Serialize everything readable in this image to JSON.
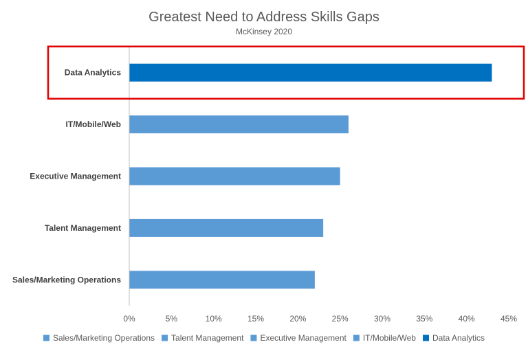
{
  "chart_data": {
    "type": "bar",
    "orientation": "horizontal",
    "title": "Greatest Need to Address Skills Gaps",
    "subtitle": "McKinsey 2020",
    "categories": [
      "Sales/Marketing Operations",
      "Talent Management",
      "Executive Management",
      "IT/Mobile/Web",
      "Data Analytics"
    ],
    "values": [
      22,
      23,
      25,
      26,
      43
    ],
    "value_unit": "%",
    "xlim": [
      0,
      45
    ],
    "x_ticks": [
      0,
      5,
      10,
      15,
      20,
      25,
      30,
      35,
      40,
      45
    ],
    "x_tick_labels": [
      "0%",
      "5%",
      "10%",
      "15%",
      "20%",
      "25%",
      "30%",
      "35%",
      "40%",
      "45%"
    ],
    "grid": false,
    "legend_position": "bottom",
    "legend": [
      "Sales/Marketing Operations",
      "Talent Management",
      "Executive Management",
      "IT/Mobile/Web",
      "Data Analytics"
    ],
    "colors": {
      "default_bar": "#5b9bd5",
      "highlight_bar": "#0070c0",
      "highlight_box": "#e00000",
      "axis": "#bfbfbf"
    },
    "highlighted_category": "Data Analytics"
  }
}
